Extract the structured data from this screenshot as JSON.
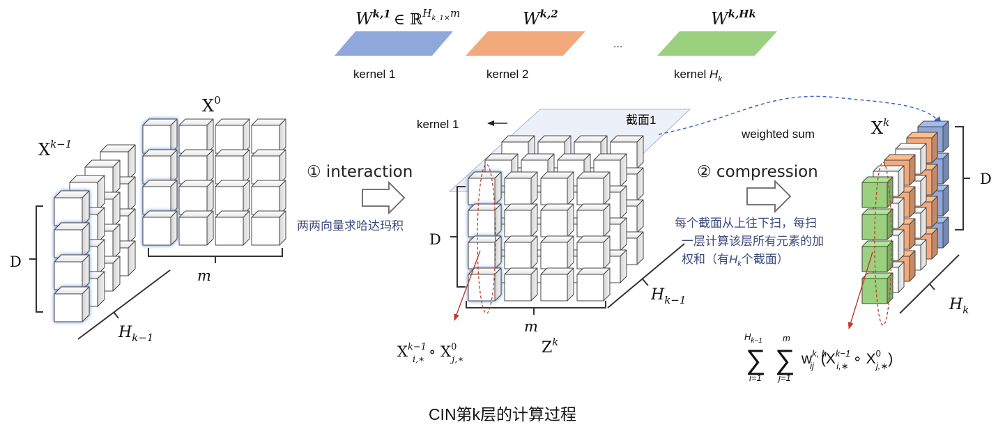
{
  "kernels": {
    "k1_symbol": "W",
    "k1_super": "k,1",
    "k1_in": "∈ ℝ",
    "k1_dim": "H",
    "k1_dim_sub": "k_1",
    "k1_times": "×",
    "k1_m": "m",
    "k2_symbol": "W",
    "k2_super": "k,2",
    "kH_symbol": "W",
    "kH_super": "k,Hk",
    "ellipsis": "...",
    "label1": "kernel 1",
    "label2": "kernel 2",
    "labelH": "kernel",
    "labelH_var": "H",
    "labelH_sub": "k",
    "colors": {
      "k1": "#8fa8db",
      "k2": "#f2a97c",
      "kH": "#9ad07e"
    }
  },
  "left": {
    "xk1": "X",
    "xk1_sup": "k−1",
    "x0": "X",
    "x0_sup": "0",
    "D": "D",
    "m": "m",
    "H": "H",
    "H_sub": "k−1"
  },
  "middle": {
    "step1": "① interaction",
    "step1_desc": "两两向量求哈达玛积",
    "kernel_arrow": "kernel 1",
    "slice": "截面1",
    "D": "D",
    "m": "m",
    "H": "H",
    "H_sub": "k−1",
    "Z": "Z",
    "Z_sup": "k",
    "formula_X": "X",
    "formula_sup1": "k−1",
    "formula_sub1": "i,∗",
    "formula_op": "∘ X",
    "formula_sup2": "0",
    "formula_sub2": "j,∗"
  },
  "right": {
    "weighted": "weighted sum",
    "xk": "X",
    "xk_sup": "k",
    "step2": "② compression",
    "desc1": "每个截面从上往下扫，每扫",
    "desc2": "一层计算该层所有元素的加",
    "desc3a": "权和（有",
    "desc3_var": "H",
    "desc3_sub": "k",
    "desc3b": "个截面）",
    "D": "D",
    "H": "H",
    "H_sub": "k",
    "sum1_top": "H",
    "sum1_top_sub": "k−1",
    "sum1_bottom": "i=1",
    "sum2_top": "m",
    "sum2_bottom": "j=1",
    "sigma": "∑",
    "w": "w",
    "w_sup": "k, h",
    "w_sub": "ij",
    "paren": "(X",
    "x_sup1": "k−1",
    "x_sub1": "i,∗",
    "op": "∘ X",
    "x_sup2": "0",
    "x_sub2": "j,∗",
    "close": ")"
  },
  "caption": "CIN第k层的计算过程"
}
